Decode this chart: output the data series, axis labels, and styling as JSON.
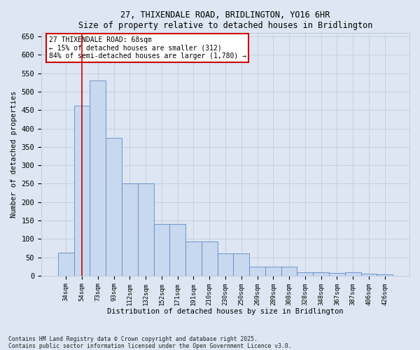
{
  "title": "27, THIXENDALE ROAD, BRIDLINGTON, YO16 6HR",
  "subtitle": "Size of property relative to detached houses in Bridlington",
  "xlabel": "Distribution of detached houses by size in Bridlington",
  "ylabel": "Number of detached properties",
  "categories": [
    "34sqm",
    "54sqm",
    "73sqm",
    "93sqm",
    "112sqm",
    "132sqm",
    "152sqm",
    "171sqm",
    "191sqm",
    "210sqm",
    "230sqm",
    "250sqm",
    "269sqm",
    "289sqm",
    "308sqm",
    "328sqm",
    "348sqm",
    "367sqm",
    "387sqm",
    "406sqm",
    "426sqm"
  ],
  "values": [
    62,
    462,
    530,
    375,
    250,
    250,
    140,
    140,
    93,
    93,
    60,
    60,
    25,
    25,
    25,
    10,
    10,
    7,
    10,
    5,
    4
  ],
  "bar_color": "#c8d8ee",
  "bar_edge_color": "#5b8cc8",
  "grid_color": "#c0cce0",
  "bg_color": "#dde6f2",
  "annotation_text": "27 THIXENDALE ROAD: 68sqm\n← 15% of detached houses are smaller (312)\n84% of semi-detached houses are larger (1,780) →",
  "annotation_box_facecolor": "#ffffff",
  "annotation_box_edgecolor": "#cc0000",
  "vline_x": 1.0,
  "vline_color": "#cc0000",
  "ylim": [
    0,
    660
  ],
  "yticks": [
    0,
    50,
    100,
    150,
    200,
    250,
    300,
    350,
    400,
    450,
    500,
    550,
    600,
    650
  ],
  "footer": "Contains HM Land Registry data © Crown copyright and database right 2025.\nContains public sector information licensed under the Open Government Licence v3.0."
}
